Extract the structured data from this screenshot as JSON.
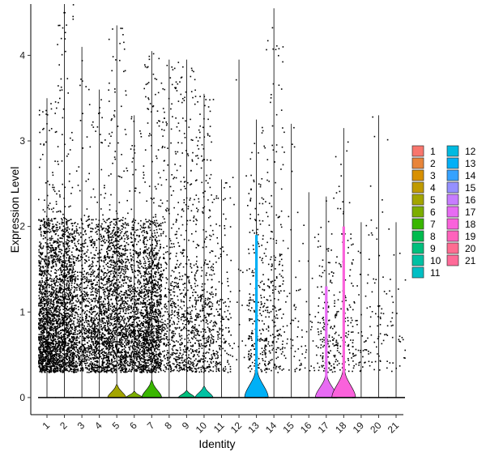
{
  "chart_data": {
    "type": "violin",
    "xlabel": "Identity",
    "ylabel": "Expression Level",
    "ylim": [
      -0.2,
      4.6
    ],
    "yticks": [
      0,
      1,
      2,
      3,
      4
    ],
    "grid": false,
    "legend_position": "right",
    "categories": [
      "1",
      "2",
      "3",
      "4",
      "5",
      "6",
      "7",
      "8",
      "9",
      "10",
      "11",
      "12",
      "13",
      "14",
      "15",
      "16",
      "17",
      "18",
      "19",
      "20",
      "21"
    ],
    "colors": [
      "#F8766D",
      "#E8853A",
      "#D89000",
      "#C09B00",
      "#A3A500",
      "#7CAE00",
      "#39B600",
      "#00BB4E",
      "#00BF7D",
      "#00C1A3",
      "#00BFC4",
      "#00BAE0",
      "#00B0F6",
      "#35A2FF",
      "#9590FF",
      "#C77CFF",
      "#E76BF3",
      "#FA62DB",
      "#FF62BC",
      "#FF6C91",
      "#FF6A98"
    ],
    "series": [
      {
        "name": "1",
        "max": 3.5,
        "dots": 1400,
        "bump": 0.0
      },
      {
        "name": "2",
        "max": 4.6,
        "dots": 1200,
        "bump": 0.0
      },
      {
        "name": "3",
        "max": 4.1,
        "dots": 650,
        "bump": 0.0
      },
      {
        "name": "4",
        "max": 3.6,
        "dots": 850,
        "bump": 0.0
      },
      {
        "name": "5",
        "max": 4.35,
        "dots": 950,
        "bump": 0.15
      },
      {
        "name": "6",
        "max": 3.3,
        "dots": 750,
        "bump": 0.07
      },
      {
        "name": "7",
        "max": 4.05,
        "dots": 1100,
        "bump": 0.2
      },
      {
        "name": "8",
        "max": 3.95,
        "dots": 380,
        "bump": 0.0
      },
      {
        "name": "9",
        "max": 3.95,
        "dots": 380,
        "bump": 0.08
      },
      {
        "name": "10",
        "max": 3.55,
        "dots": 380,
        "bump": 0.13
      },
      {
        "name": "11",
        "max": 2.55,
        "dots": 170,
        "bump": 0.0
      },
      {
        "name": "12",
        "max": 3.95,
        "dots": 22,
        "bump": 0.0
      },
      {
        "name": "13",
        "max": 3.25,
        "dots": 230,
        "bump": 0.35
      },
      {
        "name": "14",
        "max": 4.55,
        "dots": 210,
        "bump": 0.0
      },
      {
        "name": "15",
        "max": 3.2,
        "dots": 55,
        "bump": 0.0
      },
      {
        "name": "16",
        "max": 2.4,
        "dots": 35,
        "bump": 0.0
      },
      {
        "name": "17",
        "max": 2.35,
        "dots": 150,
        "bump": 0.28
      },
      {
        "name": "18",
        "max": 3.15,
        "dots": 130,
        "bump": 0.35
      },
      {
        "name": "19",
        "max": 2.05,
        "dots": 60,
        "bump": 0.0
      },
      {
        "name": "20",
        "max": 3.3,
        "dots": 55,
        "bump": 0.0
      },
      {
        "name": "21",
        "max": 2.05,
        "dots": 30,
        "bump": 0.0
      }
    ]
  }
}
